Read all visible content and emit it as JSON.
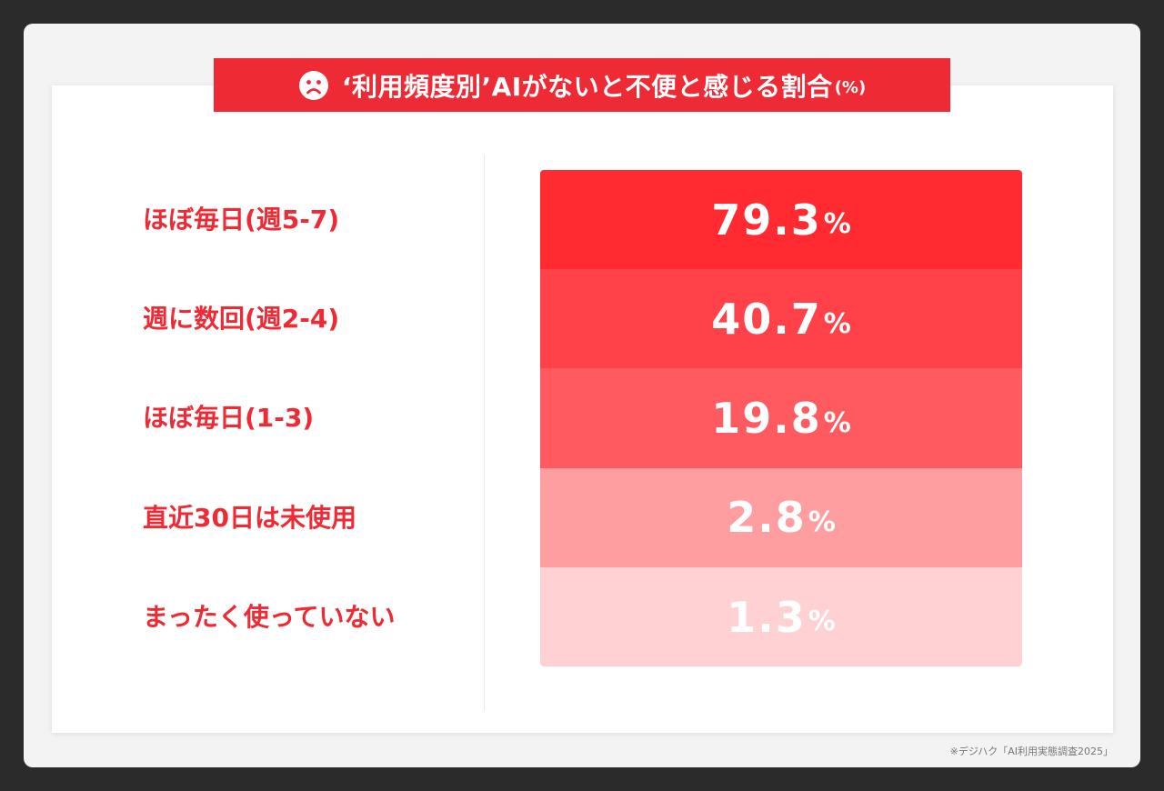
{
  "title": {
    "text": "‘利用頻度別’AIがないと不便と感じる割合",
    "unit": "(%)",
    "icon": "sad-face-icon"
  },
  "chart_data": {
    "type": "table",
    "categories": [
      "ほぼ毎日(週5-7)",
      "週に数回(週2-4)",
      "ほぼ毎日(1-3)",
      "直近30日は未使用",
      "まったく使っていない"
    ],
    "values": [
      79.3,
      40.7,
      19.8,
      2.8,
      1.3
    ],
    "value_labels": [
      "79.3",
      "40.7",
      "19.8",
      "2.8",
      "1.3"
    ],
    "value_suffix": "%",
    "colors": [
      "#ff2b30",
      "#ff4249",
      "#ff5a60",
      "#ff9ea1",
      "#ffd1d3"
    ]
  },
  "source": "※デジハク「AI利用実態調査2025」"
}
